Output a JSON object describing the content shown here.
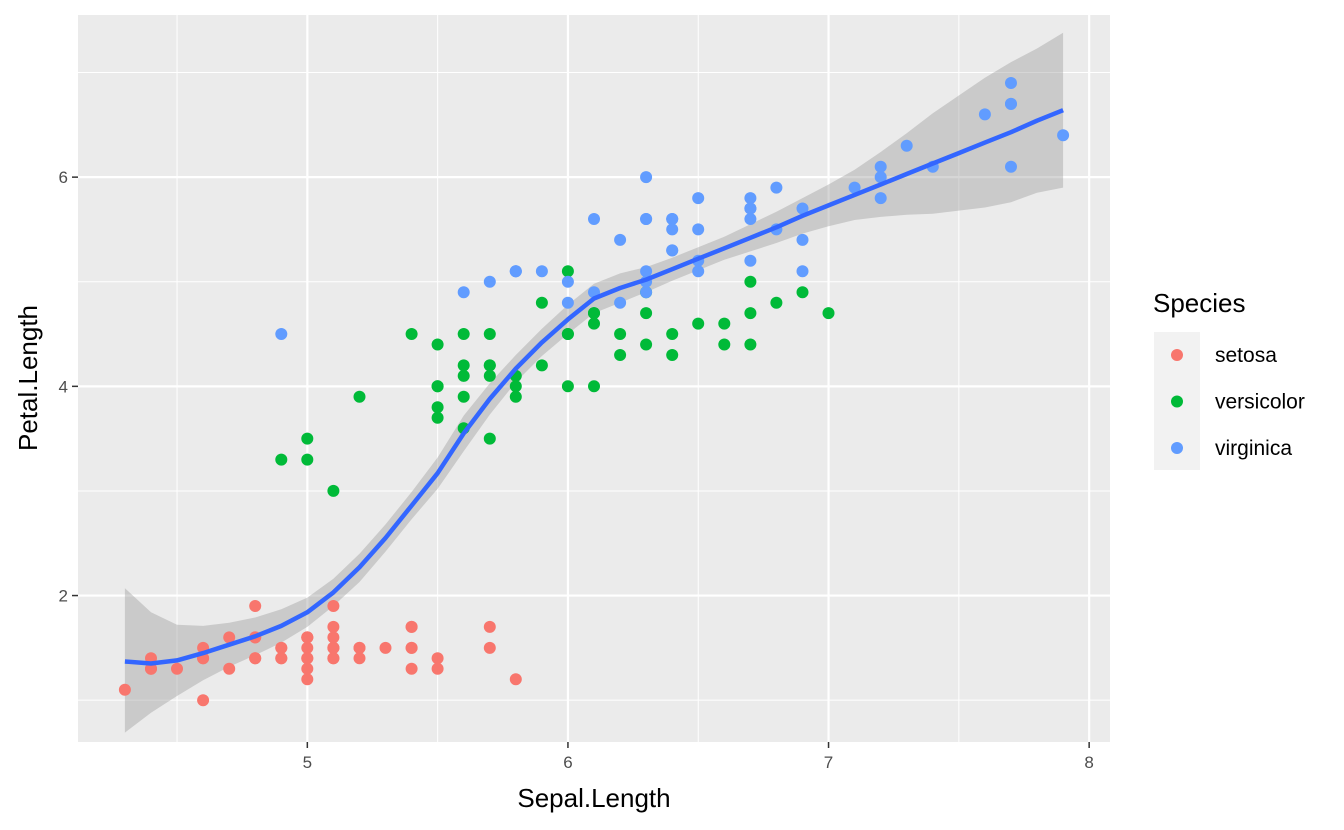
{
  "chart_data": {
    "type": "scatter",
    "xlabel": "Sepal.Length",
    "ylabel": "Petal.Length",
    "xlim": [
      4.12,
      8.08
    ],
    "ylim": [
      0.6,
      7.55
    ],
    "x_ticks": [
      5,
      6,
      7,
      8
    ],
    "x_tick_labels": [
      "5",
      "6",
      "7",
      "8"
    ],
    "y_ticks": [
      2,
      4,
      6
    ],
    "y_tick_labels": [
      "2",
      "4",
      "6"
    ],
    "grid": true,
    "legend": {
      "title": "Species",
      "position": "right",
      "entries": [
        {
          "label": "setosa",
          "color": "#F8766D"
        },
        {
          "label": "versicolor",
          "color": "#00BA38"
        },
        {
          "label": "virginica",
          "color": "#619CFF"
        }
      ]
    },
    "series": [
      {
        "name": "setosa",
        "color": "#F8766D",
        "points": [
          [
            5.1,
            1.4
          ],
          [
            4.9,
            1.4
          ],
          [
            4.7,
            1.3
          ],
          [
            4.6,
            1.5
          ],
          [
            5.0,
            1.4
          ],
          [
            5.4,
            1.7
          ],
          [
            4.6,
            1.4
          ],
          [
            5.0,
            1.5
          ],
          [
            4.4,
            1.4
          ],
          [
            4.9,
            1.5
          ],
          [
            5.4,
            1.5
          ],
          [
            4.8,
            1.6
          ],
          [
            4.8,
            1.4
          ],
          [
            4.3,
            1.1
          ],
          [
            5.8,
            1.2
          ],
          [
            5.7,
            1.5
          ],
          [
            5.4,
            1.3
          ],
          [
            5.1,
            1.4
          ],
          [
            5.7,
            1.7
          ],
          [
            5.1,
            1.5
          ],
          [
            5.4,
            1.7
          ],
          [
            5.1,
            1.5
          ],
          [
            4.6,
            1.0
          ],
          [
            5.1,
            1.7
          ],
          [
            4.8,
            1.9
          ],
          [
            5.0,
            1.6
          ],
          [
            5.0,
            1.6
          ],
          [
            5.2,
            1.5
          ],
          [
            5.2,
            1.4
          ],
          [
            4.7,
            1.6
          ],
          [
            4.8,
            1.6
          ],
          [
            5.4,
            1.5
          ],
          [
            5.2,
            1.5
          ],
          [
            5.5,
            1.4
          ],
          [
            4.9,
            1.5
          ],
          [
            5.0,
            1.2
          ],
          [
            5.5,
            1.3
          ],
          [
            4.9,
            1.4
          ],
          [
            4.4,
            1.3
          ],
          [
            5.1,
            1.5
          ],
          [
            5.0,
            1.3
          ],
          [
            4.5,
            1.3
          ],
          [
            4.4,
            1.3
          ],
          [
            5.0,
            1.6
          ],
          [
            5.1,
            1.9
          ],
          [
            4.8,
            1.4
          ],
          [
            5.1,
            1.6
          ],
          [
            4.6,
            1.4
          ],
          [
            5.3,
            1.5
          ],
          [
            5.0,
            1.4
          ]
        ]
      },
      {
        "name": "versicolor",
        "color": "#00BA38",
        "points": [
          [
            7.0,
            4.7
          ],
          [
            6.4,
            4.5
          ],
          [
            6.9,
            4.9
          ],
          [
            5.5,
            4.0
          ],
          [
            6.5,
            4.6
          ],
          [
            5.7,
            4.5
          ],
          [
            6.3,
            4.7
          ],
          [
            4.9,
            3.3
          ],
          [
            6.6,
            4.6
          ],
          [
            5.2,
            3.9
          ],
          [
            5.0,
            3.5
          ],
          [
            5.9,
            4.2
          ],
          [
            6.0,
            4.0
          ],
          [
            6.1,
            4.7
          ],
          [
            5.6,
            3.6
          ],
          [
            6.7,
            4.4
          ],
          [
            5.6,
            4.5
          ],
          [
            5.8,
            4.1
          ],
          [
            6.2,
            4.5
          ],
          [
            5.6,
            3.9
          ],
          [
            5.9,
            4.8
          ],
          [
            6.1,
            4.0
          ],
          [
            6.3,
            4.9
          ],
          [
            6.1,
            4.7
          ],
          [
            6.4,
            4.3
          ],
          [
            6.6,
            4.4
          ],
          [
            6.8,
            4.8
          ],
          [
            6.7,
            5.0
          ],
          [
            6.0,
            4.5
          ],
          [
            5.7,
            3.5
          ],
          [
            5.5,
            3.8
          ],
          [
            5.5,
            3.7
          ],
          [
            5.8,
            3.9
          ],
          [
            6.0,
            5.1
          ],
          [
            5.4,
            4.5
          ],
          [
            6.0,
            4.5
          ],
          [
            6.7,
            4.7
          ],
          [
            6.3,
            4.4
          ],
          [
            5.6,
            4.1
          ],
          [
            5.5,
            4.0
          ],
          [
            5.5,
            4.4
          ],
          [
            6.1,
            4.6
          ],
          [
            5.8,
            4.0
          ],
          [
            5.0,
            3.3
          ],
          [
            5.6,
            4.2
          ],
          [
            5.7,
            4.2
          ],
          [
            5.7,
            4.2
          ],
          [
            6.2,
            4.3
          ],
          [
            5.1,
            3.0
          ],
          [
            5.7,
            4.1
          ]
        ]
      },
      {
        "name": "virginica",
        "color": "#619CFF",
        "points": [
          [
            6.3,
            6.0
          ],
          [
            5.8,
            5.1
          ],
          [
            7.1,
            5.9
          ],
          [
            6.3,
            5.6
          ],
          [
            6.5,
            5.8
          ],
          [
            7.6,
            6.6
          ],
          [
            4.9,
            4.5
          ],
          [
            7.3,
            6.3
          ],
          [
            6.7,
            5.8
          ],
          [
            7.2,
            6.1
          ],
          [
            6.5,
            5.1
          ],
          [
            6.4,
            5.3
          ],
          [
            6.8,
            5.5
          ],
          [
            5.7,
            5.0
          ],
          [
            5.8,
            5.1
          ],
          [
            6.4,
            5.3
          ],
          [
            6.5,
            5.5
          ],
          [
            7.7,
            6.7
          ],
          [
            7.7,
            6.9
          ],
          [
            6.0,
            5.0
          ],
          [
            6.9,
            5.7
          ],
          [
            5.6,
            4.9
          ],
          [
            7.7,
            6.7
          ],
          [
            6.3,
            4.9
          ],
          [
            6.7,
            5.7
          ],
          [
            7.2,
            6.0
          ],
          [
            6.2,
            4.8
          ],
          [
            6.1,
            4.9
          ],
          [
            6.4,
            5.6
          ],
          [
            7.2,
            5.8
          ],
          [
            7.4,
            6.1
          ],
          [
            7.9,
            6.4
          ],
          [
            6.4,
            5.6
          ],
          [
            6.3,
            5.1
          ],
          [
            6.1,
            5.6
          ],
          [
            7.7,
            6.1
          ],
          [
            6.3,
            5.6
          ],
          [
            6.4,
            5.5
          ],
          [
            6.0,
            4.8
          ],
          [
            6.9,
            5.4
          ],
          [
            6.7,
            5.6
          ],
          [
            6.9,
            5.1
          ],
          [
            5.8,
            5.1
          ],
          [
            6.8,
            5.9
          ],
          [
            6.7,
            5.7
          ],
          [
            6.7,
            5.2
          ],
          [
            6.3,
            5.0
          ],
          [
            6.5,
            5.2
          ],
          [
            6.2,
            5.4
          ],
          [
            5.9,
            5.1
          ]
        ]
      }
    ],
    "smooth": {
      "color": "#3366FF",
      "band_color": "#999999",
      "curve": [
        [
          4.3,
          1.37
        ],
        [
          4.4,
          1.35
        ],
        [
          4.5,
          1.38
        ],
        [
          4.6,
          1.45
        ],
        [
          4.7,
          1.53
        ],
        [
          4.8,
          1.61
        ],
        [
          4.9,
          1.71
        ],
        [
          5.0,
          1.84
        ],
        [
          5.1,
          2.03
        ],
        [
          5.2,
          2.27
        ],
        [
          5.3,
          2.55
        ],
        [
          5.4,
          2.86
        ],
        [
          5.5,
          3.17
        ],
        [
          5.6,
          3.55
        ],
        [
          5.7,
          3.88
        ],
        [
          5.8,
          4.17
        ],
        [
          5.9,
          4.42
        ],
        [
          6.0,
          4.64
        ],
        [
          6.1,
          4.84
        ],
        [
          6.2,
          4.94
        ],
        [
          6.3,
          5.02
        ],
        [
          6.4,
          5.12
        ],
        [
          6.5,
          5.22
        ],
        [
          6.6,
          5.32
        ],
        [
          6.7,
          5.42
        ],
        [
          6.8,
          5.52
        ],
        [
          6.9,
          5.63
        ],
        [
          7.0,
          5.73
        ],
        [
          7.1,
          5.83
        ],
        [
          7.2,
          5.93
        ],
        [
          7.3,
          6.03
        ],
        [
          7.4,
          6.13
        ],
        [
          7.5,
          6.23
        ],
        [
          7.6,
          6.33
        ],
        [
          7.7,
          6.43
        ],
        [
          7.8,
          6.54
        ],
        [
          7.9,
          6.64
        ]
      ],
      "upper": [
        [
          4.3,
          2.07
        ],
        [
          4.4,
          1.84
        ],
        [
          4.5,
          1.72
        ],
        [
          4.6,
          1.71
        ],
        [
          4.7,
          1.74
        ],
        [
          4.8,
          1.79
        ],
        [
          4.9,
          1.87
        ],
        [
          5.0,
          1.98
        ],
        [
          5.1,
          2.16
        ],
        [
          5.2,
          2.4
        ],
        [
          5.3,
          2.68
        ],
        [
          5.4,
          2.99
        ],
        [
          5.5,
          3.32
        ],
        [
          5.6,
          3.72
        ],
        [
          5.7,
          4.03
        ],
        [
          5.8,
          4.3
        ],
        [
          5.9,
          4.55
        ],
        [
          6.0,
          4.78
        ],
        [
          6.1,
          4.98
        ],
        [
          6.2,
          5.08
        ],
        [
          6.3,
          5.14
        ],
        [
          6.4,
          5.23
        ],
        [
          6.5,
          5.33
        ],
        [
          6.6,
          5.43
        ],
        [
          6.7,
          5.55
        ],
        [
          6.8,
          5.67
        ],
        [
          6.9,
          5.8
        ],
        [
          7.0,
          5.93
        ],
        [
          7.1,
          6.07
        ],
        [
          7.2,
          6.24
        ],
        [
          7.3,
          6.42
        ],
        [
          7.4,
          6.61
        ],
        [
          7.5,
          6.78
        ],
        [
          7.6,
          6.95
        ],
        [
          7.7,
          7.1
        ],
        [
          7.8,
          7.23
        ],
        [
          7.9,
          7.38
        ]
      ],
      "lower": [
        [
          4.3,
          0.69
        ],
        [
          4.4,
          0.88
        ],
        [
          4.5,
          1.04
        ],
        [
          4.6,
          1.19
        ],
        [
          4.7,
          1.32
        ],
        [
          4.8,
          1.43
        ],
        [
          4.9,
          1.55
        ],
        [
          5.0,
          1.7
        ],
        [
          5.1,
          1.9
        ],
        [
          5.2,
          2.13
        ],
        [
          5.3,
          2.42
        ],
        [
          5.4,
          2.73
        ],
        [
          5.5,
          3.02
        ],
        [
          5.6,
          3.38
        ],
        [
          5.7,
          3.73
        ],
        [
          5.8,
          4.04
        ],
        [
          5.9,
          4.29
        ],
        [
          6.0,
          4.5
        ],
        [
          6.1,
          4.7
        ],
        [
          6.2,
          4.8
        ],
        [
          6.3,
          4.9
        ],
        [
          6.4,
          5.01
        ],
        [
          6.5,
          5.11
        ],
        [
          6.6,
          5.21
        ],
        [
          6.7,
          5.29
        ],
        [
          6.8,
          5.37
        ],
        [
          6.9,
          5.46
        ],
        [
          7.0,
          5.53
        ],
        [
          7.1,
          5.59
        ],
        [
          7.2,
          5.62
        ],
        [
          7.3,
          5.64
        ],
        [
          7.4,
          5.65
        ],
        [
          7.5,
          5.68
        ],
        [
          7.6,
          5.71
        ],
        [
          7.7,
          5.76
        ],
        [
          7.8,
          5.85
        ],
        [
          7.9,
          5.9
        ]
      ]
    }
  }
}
